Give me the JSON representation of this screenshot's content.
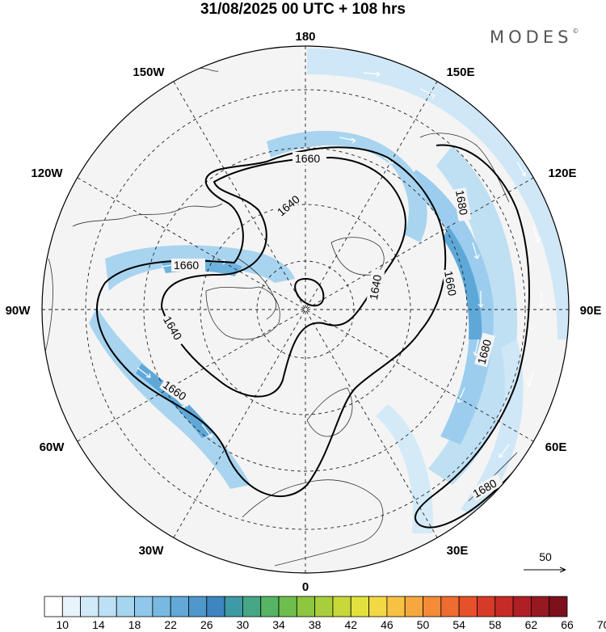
{
  "title": "31/08/2025  00 UTC  + 108 hrs",
  "brand": {
    "name": "MODES",
    "mark": "©"
  },
  "map": {
    "projection": "north-polar-stereographic",
    "lon_labels": [
      "180",
      "150E",
      "120E",
      "90E",
      "60E",
      "30E",
      "0",
      "30W",
      "60W",
      "90W",
      "120W",
      "150W"
    ],
    "contour_labels": [
      "1660",
      "1640",
      "1660",
      "1640",
      "1660",
      "1680",
      "1660",
      "1640",
      "1680",
      "1680"
    ]
  },
  "vector_legend": {
    "label": "50"
  },
  "colorbar": {
    "ticks": [
      "10",
      "14",
      "18",
      "22",
      "26",
      "30",
      "34",
      "38",
      "42",
      "46",
      "50",
      "54",
      "58",
      "62",
      "66",
      "70"
    ],
    "colors": [
      "#ffffff",
      "#e8f4fb",
      "#d2eaf7",
      "#bde0f4",
      "#a6d5f0",
      "#8fc8ea",
      "#78b9e2",
      "#62a9d8",
      "#4f98cc",
      "#3d86bf",
      "#3e9aa6",
      "#46a686",
      "#55b565",
      "#6dbf4d",
      "#8dc63f",
      "#a8cf3b",
      "#c6d83a",
      "#e2e23e",
      "#f3d845",
      "#f7c244",
      "#f6a83f",
      "#f38b38",
      "#ee6c31",
      "#e6512c",
      "#d83a29",
      "#c62b27",
      "#b01f24",
      "#961821",
      "#7c111c"
    ]
  }
}
